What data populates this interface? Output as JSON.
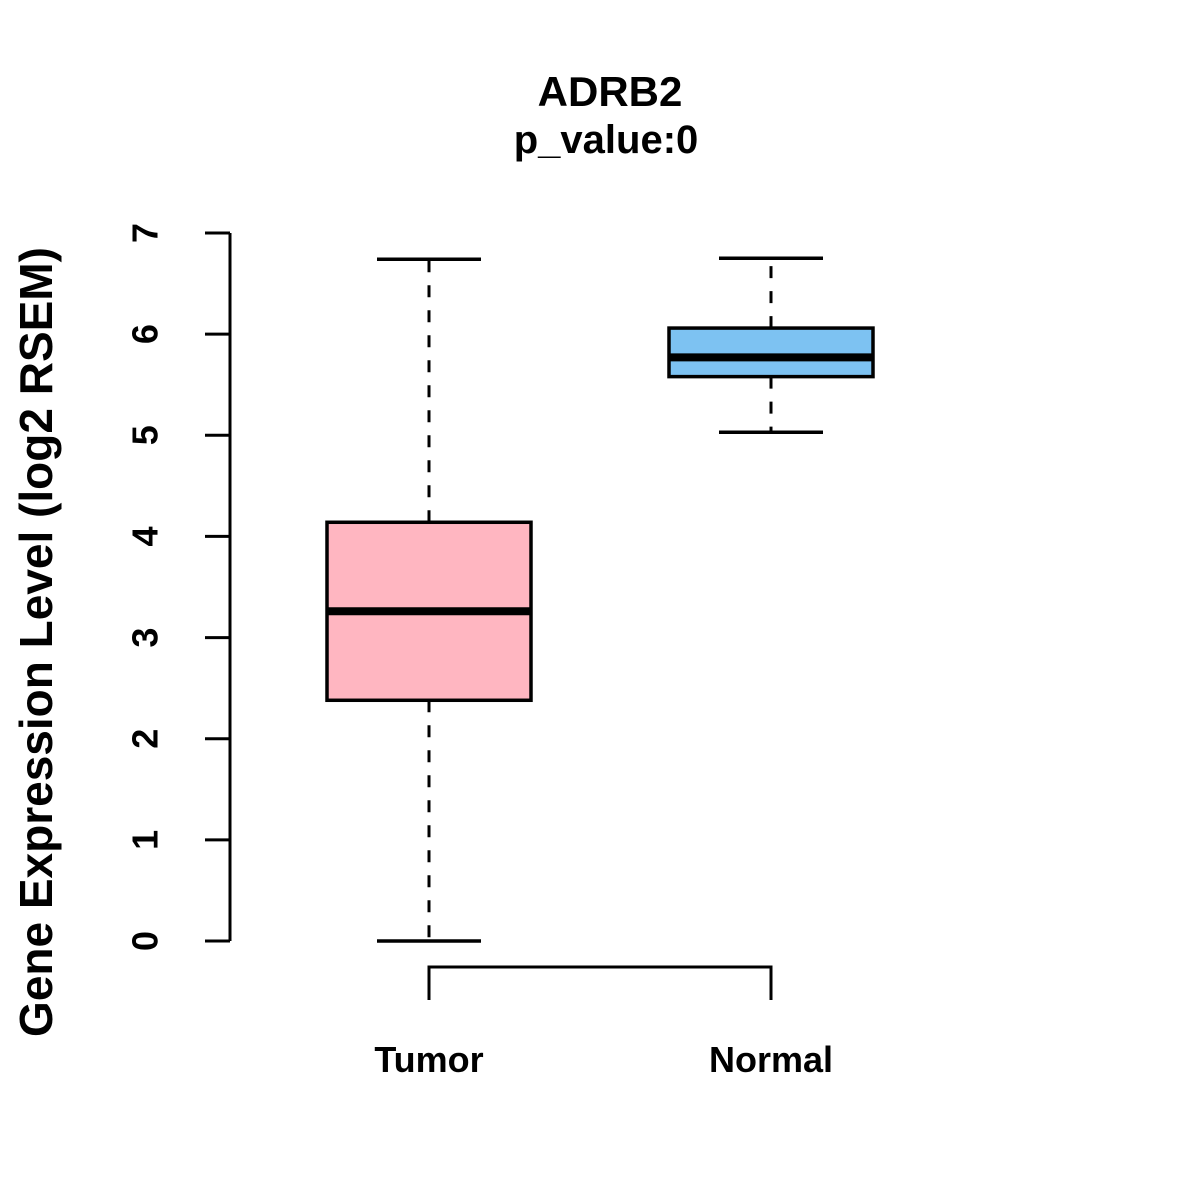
{
  "chart_data": {
    "type": "boxplot",
    "title": "ADRB2",
    "subtitle": "p_value:0",
    "ylabel": "Gene Expression Level (log2 RSEM)",
    "xlabel": "",
    "ylim": [
      0,
      7
    ],
    "yticks": [
      0,
      1,
      2,
      3,
      4,
      5,
      6,
      7
    ],
    "categories": [
      "Tumor",
      "Normal"
    ],
    "series": [
      {
        "name": "Tumor",
        "color": "#FFB6C1",
        "whisker_low": 0,
        "q1": 2.38,
        "median": 3.26,
        "q3": 4.14,
        "whisker_high": 6.74
      },
      {
        "name": "Normal",
        "color": "#7DC2F2",
        "whisker_low": 5.03,
        "q1": 5.58,
        "median": 5.77,
        "q3": 6.06,
        "whisker_high": 6.75
      }
    ],
    "style": {
      "axis_color": "#000000",
      "box_border_color": "#000000",
      "median_color": "#000000",
      "text_color": "#000000",
      "background": "#FFFFFF",
      "whisker_style": "dashed",
      "legend": "none",
      "grid": "off"
    }
  }
}
